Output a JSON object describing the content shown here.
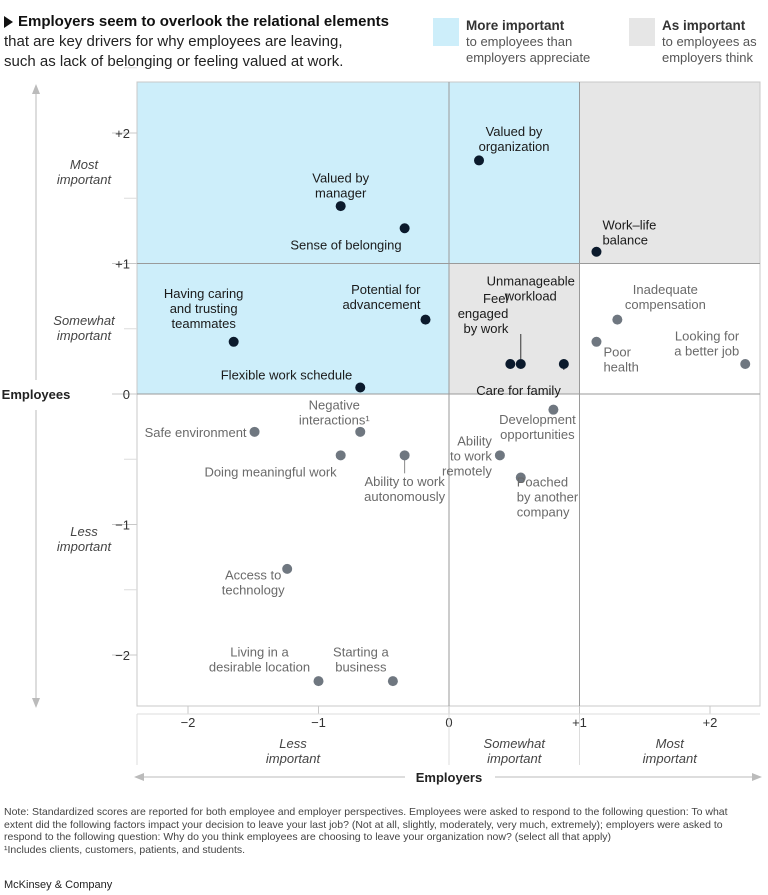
{
  "header": {
    "title": "Employers seem to overlook the relational elements",
    "subtitle_line1": "that are key drivers for why employees are leaving,",
    "subtitle_line2": "such as lack of belonging or feeling valued at work."
  },
  "legend": [
    {
      "title": "More important",
      "line1": "to employees than",
      "line2": "employers appreciate",
      "color": "#cdeefa"
    },
    {
      "title": "As important",
      "line1": "to employees as",
      "line2": "employers think",
      "color": "#e6e6e6"
    }
  ],
  "colors": {
    "blue_region": "#cdeefa",
    "gray_region": "#e6e6e6",
    "dark_point": "#0b1a2c",
    "light_point": "#6f7780",
    "dark_label": "#1a1a1a",
    "light_label": "#6a6a6a"
  },
  "chart_data": {
    "type": "scatter",
    "xlabel": "Employers",
    "ylabel": "Employees",
    "xlim": [
      -2.4,
      2.4
    ],
    "ylim": [
      -2.4,
      2.4
    ],
    "x_ticks": [
      "−2",
      "−1",
      "0",
      "+1",
      "+2"
    ],
    "y_ticks": [
      "+2",
      "+1",
      "0",
      "−1",
      "−2"
    ],
    "x_bands": [
      {
        "line1": "Less",
        "line2": "important"
      },
      {
        "line1": "Somewhat",
        "line2": "important"
      },
      {
        "line1": "Most",
        "line2": "important"
      }
    ],
    "y_bands": [
      {
        "line1": "Most",
        "line2": "important"
      },
      {
        "line1": "Somewhat",
        "line2": "important"
      },
      {
        "line1": "Less",
        "line2": "important"
      }
    ],
    "points": [
      {
        "label": [
          "Valued by",
          "organization"
        ],
        "x": 0.23,
        "y": 1.79,
        "dark": true
      },
      {
        "label": [
          "Valued by",
          "manager"
        ],
        "x": -0.83,
        "y": 1.44,
        "dark": true
      },
      {
        "label": [
          "Sense of belonging"
        ],
        "x": -0.34,
        "y": 1.27,
        "dark": true
      },
      {
        "label": [
          "Work–life",
          "balance"
        ],
        "x": 1.13,
        "y": 1.09,
        "dark": true
      },
      {
        "label": [
          "Having caring",
          "and trusting",
          "teammates"
        ],
        "x": -1.65,
        "y": 0.4,
        "dark": true
      },
      {
        "label": [
          "Potential for",
          "advancement"
        ],
        "x": -0.18,
        "y": 0.57,
        "dark": true
      },
      {
        "label": [
          "Unmanageable",
          "workload"
        ],
        "x": 0.55,
        "y": 0.23,
        "dark": true
      },
      {
        "label": [
          "Feel",
          "engaged",
          "by work"
        ],
        "x": 0.47,
        "y": 0.23,
        "dark": true
      },
      {
        "label": [
          "Care for family"
        ],
        "x": 0.88,
        "y": 0.23,
        "dark": true
      },
      {
        "label": [
          "Flexible work schedule"
        ],
        "x": -0.68,
        "y": 0.05,
        "dark": true
      },
      {
        "label": [
          "Inadequate",
          "compensation"
        ],
        "x": 1.29,
        "y": 0.57,
        "dark": false
      },
      {
        "label": [
          "Poor",
          "health"
        ],
        "x": 1.13,
        "y": 0.4,
        "dark": false
      },
      {
        "label": [
          "Looking for",
          "a better job"
        ],
        "x": 2.27,
        "y": 0.23,
        "dark": false
      },
      {
        "label": [
          "Safe environment"
        ],
        "x": -1.49,
        "y": -0.29,
        "dark": false
      },
      {
        "label": [
          "Negative",
          "interactions¹"
        ],
        "x": -0.68,
        "y": -0.29,
        "dark": false
      },
      {
        "label": [
          "Doing meaningful work"
        ],
        "x": -0.83,
        "y": -0.47,
        "dark": false
      },
      {
        "label": [
          "Ability to work",
          "autonomously"
        ],
        "x": -0.34,
        "y": -0.47,
        "dark": false
      },
      {
        "label": [
          "Development",
          "opportunities"
        ],
        "x": 0.8,
        "y": -0.12,
        "dark": false
      },
      {
        "label": [
          "Ability",
          "to work",
          "remotely"
        ],
        "x": 0.39,
        "y": -0.47,
        "dark": false
      },
      {
        "label": [
          "Poached",
          "by another",
          "company"
        ],
        "x": 0.55,
        "y": -0.64,
        "dark": false
      },
      {
        "label": [
          "Access to",
          "technology"
        ],
        "x": -1.24,
        "y": -1.34,
        "dark": false
      },
      {
        "label": [
          "Living in a",
          "desirable location"
        ],
        "x": -1.0,
        "y": -2.2,
        "dark": false
      },
      {
        "label": [
          "Starting a",
          "business"
        ],
        "x": -0.43,
        "y": -2.2,
        "dark": false
      }
    ]
  },
  "note": {
    "line1": "Note: Standardized scores are reported for both employee and employer perspectives. Employees were asked to respond to the following question: To what",
    "line2": "extent did the following factors impact your decision to leave your last job? (Not at all, slightly, moderately, very much, extremely); employers were asked to",
    "line3": "respond to the following question: Why do you think employees are choosing to leave your organization now? (select all that apply)",
    "footnote": "¹Includes clients, customers, patients, and students."
  },
  "brand": "McKinsey & Company"
}
